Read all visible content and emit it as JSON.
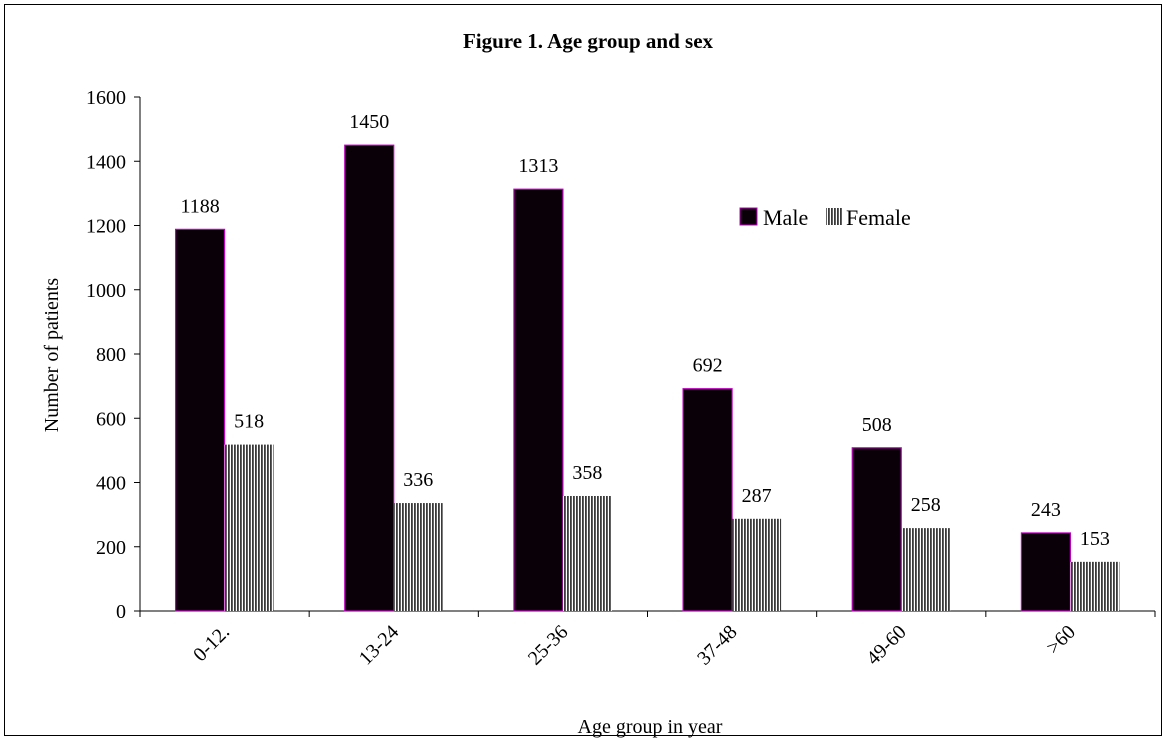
{
  "chart_data": {
    "type": "bar",
    "title": "Figure 1. Age group and sex",
    "xlabel": "Age group in year",
    "ylabel": "Number of patients",
    "categories": [
      "0-12.",
      "13-24",
      "25-36",
      "37-48",
      "49-60",
      ">60"
    ],
    "series": [
      {
        "name": "Male",
        "values": [
          1188,
          1450,
          1313,
          692,
          508,
          243
        ],
        "color": "#0a0008",
        "edge": "#c000c0"
      },
      {
        "name": "Female",
        "values": [
          518,
          336,
          358,
          287,
          258,
          153
        ],
        "color": "#505050",
        "pattern": "vertical-stripes"
      }
    ],
    "ylim": [
      0,
      1600
    ],
    "yticks": [
      "0",
      "200",
      "400",
      "600",
      "800",
      "1000",
      "1200",
      "1400",
      "1600"
    ],
    "grid": false,
    "legend_position": "upper-right",
    "data_labels": true
  }
}
